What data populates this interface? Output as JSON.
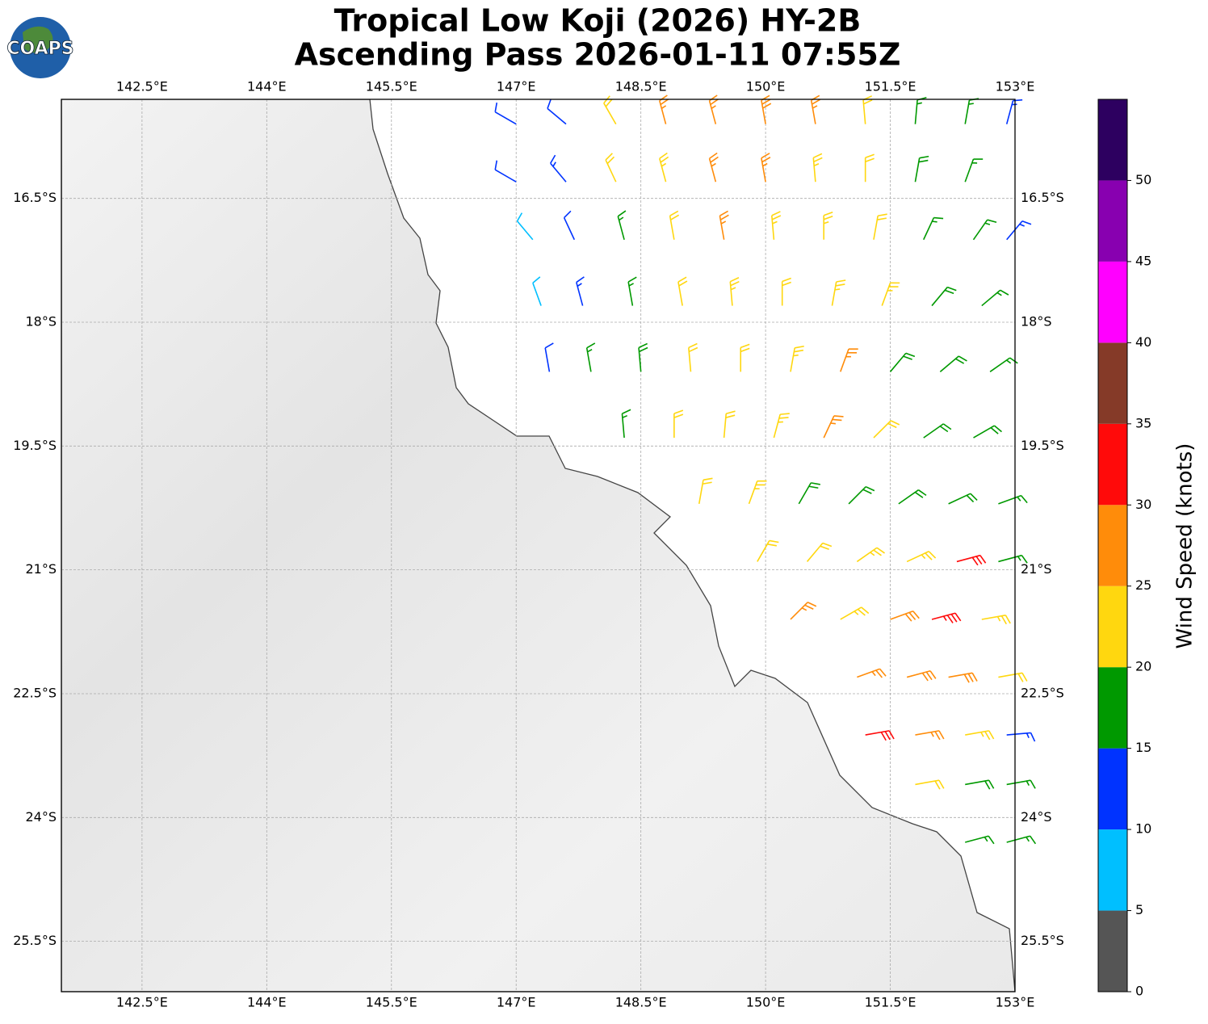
{
  "header": {
    "title": "Tropical Low Koji (2026) HY-2B",
    "subtitle": "Ascending Pass 2026-01-11 07:55Z",
    "logo": "COAPS"
  },
  "map": {
    "lon_range": [
      141.53,
      153.0
    ],
    "lat_range": [
      -15.3,
      -26.11
    ],
    "lon_ticks": [
      {
        "value": 142.5,
        "label": "142.5°E"
      },
      {
        "value": 144,
        "label": "144°E"
      },
      {
        "value": 145.5,
        "label": "145.5°E"
      },
      {
        "value": 147,
        "label": "147°E"
      },
      {
        "value": 148.5,
        "label": "148.5°E"
      },
      {
        "value": 150,
        "label": "150°E"
      },
      {
        "value": 151.5,
        "label": "151.5°E"
      },
      {
        "value": 153,
        "label": "153°E"
      }
    ],
    "lat_ticks": [
      {
        "value": -16.5,
        "label": "16.5°S"
      },
      {
        "value": -18,
        "label": "18°S"
      },
      {
        "value": -19.5,
        "label": "19.5°S"
      },
      {
        "value": -21,
        "label": "21°S"
      },
      {
        "value": -22.5,
        "label": "22.5°S"
      },
      {
        "value": -24,
        "label": "24°S"
      },
      {
        "value": -25.5,
        "label": "25.5°S"
      }
    ]
  },
  "colorbar": {
    "label": "Wind Speed (knots)",
    "bounds": [
      0,
      5,
      10,
      15,
      20,
      25,
      30,
      35,
      40,
      45,
      50,
      55
    ],
    "ticks": [
      0,
      5,
      10,
      15,
      20,
      25,
      30,
      35,
      40,
      45,
      50
    ],
    "colors": [
      "#555555",
      "#00bfff",
      "#0033ff",
      "#009900",
      "#ffd70f",
      "#ff8c0a",
      "#ff0a0a",
      "#853a28",
      "#ff00ff",
      "#8800b0",
      "#2d0060"
    ]
  },
  "barbs": [
    [
      147.0,
      -15.6,
      10,
      300
    ],
    [
      147.6,
      -15.6,
      12,
      310
    ],
    [
      148.2,
      -15.6,
      22,
      330
    ],
    [
      148.8,
      -15.6,
      26,
      345
    ],
    [
      149.4,
      -15.6,
      27,
      345
    ],
    [
      150.0,
      -15.6,
      28,
      350
    ],
    [
      150.6,
      -15.6,
      26,
      350
    ],
    [
      151.2,
      -15.6,
      21,
      355
    ],
    [
      151.8,
      -15.6,
      17,
      5
    ],
    [
      152.4,
      -15.6,
      15,
      10
    ],
    [
      152.9,
      -15.6,
      13,
      15
    ],
    [
      147.0,
      -16.3,
      12,
      300
    ],
    [
      147.6,
      -16.3,
      13,
      320
    ],
    [
      148.2,
      -16.3,
      20,
      335
    ],
    [
      148.8,
      -16.3,
      24,
      345
    ],
    [
      149.4,
      -16.3,
      26,
      345
    ],
    [
      150.0,
      -16.3,
      27,
      350
    ],
    [
      150.6,
      -16.3,
      24,
      355
    ],
    [
      151.2,
      -16.3,
      22,
      0
    ],
    [
      151.8,
      -16.3,
      18,
      10
    ],
    [
      152.4,
      -16.3,
      16,
      20
    ],
    [
      147.2,
      -17.0,
      8,
      320
    ],
    [
      147.7,
      -17.0,
      12,
      335
    ],
    [
      148.3,
      -17.0,
      17,
      345
    ],
    [
      148.9,
      -17.0,
      22,
      350
    ],
    [
      149.5,
      -17.0,
      25,
      350
    ],
    [
      150.1,
      -17.0,
      24,
      355
    ],
    [
      150.7,
      -17.0,
      23,
      0
    ],
    [
      151.3,
      -17.0,
      20,
      10
    ],
    [
      151.9,
      -17.0,
      17,
      25
    ],
    [
      152.5,
      -17.0,
      16,
      35
    ],
    [
      152.9,
      -17.0,
      13,
      40
    ],
    [
      147.3,
      -17.8,
      8,
      340
    ],
    [
      147.8,
      -17.8,
      13,
      345
    ],
    [
      148.4,
      -17.8,
      17,
      350
    ],
    [
      149.0,
      -17.8,
      21,
      350
    ],
    [
      149.6,
      -17.8,
      23,
      355
    ],
    [
      150.2,
      -17.8,
      22,
      0
    ],
    [
      150.8,
      -17.8,
      24,
      10
    ],
    [
      151.4,
      -17.8,
      23,
      20
    ],
    [
      152.0,
      -17.8,
      18,
      40
    ],
    [
      152.6,
      -17.8,
      17,
      50
    ],
    [
      147.4,
      -18.6,
      12,
      350
    ],
    [
      147.9,
      -18.6,
      16,
      350
    ],
    [
      148.5,
      -18.6,
      18,
      355
    ],
    [
      149.1,
      -18.6,
      22,
      355
    ],
    [
      149.7,
      -18.6,
      22,
      0
    ],
    [
      150.3,
      -18.6,
      23,
      10
    ],
    [
      150.9,
      -18.6,
      27,
      20
    ],
    [
      151.5,
      -18.6,
      19,
      40
    ],
    [
      152.1,
      -18.6,
      18,
      50
    ],
    [
      152.7,
      -18.6,
      17,
      55
    ],
    [
      148.3,
      -19.4,
      17,
      355
    ],
    [
      148.9,
      -19.4,
      21,
      0
    ],
    [
      149.5,
      -19.4,
      22,
      5
    ],
    [
      150.1,
      -19.4,
      23,
      15
    ],
    [
      150.7,
      -19.4,
      26,
      25
    ],
    [
      151.3,
      -19.4,
      20,
      45
    ],
    [
      151.9,
      -19.4,
      18,
      55
    ],
    [
      152.5,
      -19.4,
      18,
      60
    ],
    [
      149.2,
      -20.2,
      22,
      10
    ],
    [
      149.8,
      -20.2,
      23,
      20
    ],
    [
      150.4,
      -20.2,
      19,
      30
    ],
    [
      151.0,
      -20.2,
      18,
      45
    ],
    [
      151.6,
      -20.2,
      19,
      55
    ],
    [
      152.2,
      -20.2,
      18,
      65
    ],
    [
      152.8,
      -20.2,
      17,
      70
    ],
    [
      149.9,
      -20.9,
      22,
      30
    ],
    [
      150.5,
      -20.9,
      21,
      40
    ],
    [
      151.1,
      -20.9,
      23,
      55
    ],
    [
      151.7,
      -20.9,
      24,
      65
    ],
    [
      152.3,
      -20.9,
      32,
      75
    ],
    [
      152.8,
      -20.9,
      17,
      75
    ],
    [
      150.3,
      -21.6,
      26,
      45
    ],
    [
      150.9,
      -21.6,
      24,
      60
    ],
    [
      151.5,
      -21.6,
      28,
      70
    ],
    [
      152.0,
      -21.6,
      33,
      75
    ],
    [
      152.6,
      -21.6,
      24,
      80
    ],
    [
      151.1,
      -22.3,
      27,
      70
    ],
    [
      151.7,
      -22.3,
      28,
      75
    ],
    [
      152.2,
      -22.3,
      29,
      80
    ],
    [
      152.8,
      -22.3,
      22,
      80
    ],
    [
      151.2,
      -23.0,
      31,
      80
    ],
    [
      151.8,
      -23.0,
      26,
      80
    ],
    [
      152.4,
      -23.0,
      23,
      80
    ],
    [
      152.9,
      -23.0,
      13,
      85
    ],
    [
      151.8,
      -23.6,
      22,
      80
    ],
    [
      152.4,
      -23.6,
      18,
      80
    ],
    [
      152.9,
      -23.6,
      16,
      80
    ],
    [
      152.4,
      -24.3,
      17,
      75
    ],
    [
      152.9,
      -24.3,
      17,
      75
    ]
  ]
}
